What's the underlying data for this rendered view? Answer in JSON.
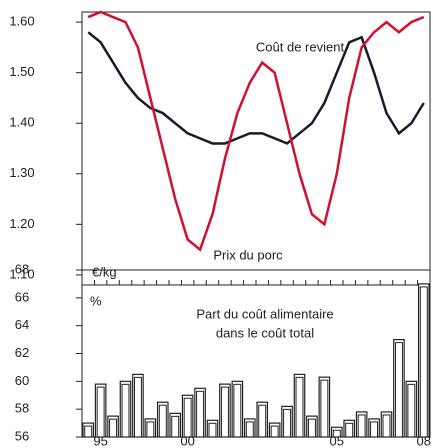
{
  "chart_data": [
    {
      "type": "line",
      "unit_label": "€/kg",
      "ylim": [
        1.08,
        1.62
      ],
      "yticks": [
        {
          "value": 1.1,
          "label": "1.10"
        },
        {
          "value": 1.2,
          "label": "1.20"
        },
        {
          "value": 1.3,
          "label": "1.30"
        },
        {
          "value": 1.4,
          "label": "1.40"
        },
        {
          "value": 1.5,
          "label": "1.50"
        },
        {
          "value": 1.6,
          "label": "1.60"
        }
      ],
      "series": [
        {
          "name": "Coût de revient",
          "color": "#1a1a2e",
          "values": [
            1.58,
            1.56,
            1.52,
            1.48,
            1.45,
            1.43,
            1.42,
            1.4,
            1.38,
            1.37,
            1.36,
            1.36,
            1.37,
            1.38,
            1.38,
            1.37,
            1.36,
            1.38,
            1.4,
            1.44,
            1.5,
            1.56,
            1.57,
            1.5,
            1.42,
            1.38,
            1.4,
            1.44
          ]
        },
        {
          "name": "Prix du porc",
          "color": "#d0102e",
          "values": [
            1.61,
            1.62,
            1.61,
            1.6,
            1.55,
            1.45,
            1.35,
            1.25,
            1.17,
            1.15,
            1.22,
            1.33,
            1.42,
            1.48,
            1.52,
            1.5,
            1.4,
            1.3,
            1.22,
            1.2,
            1.3,
            1.45,
            1.55,
            1.58,
            1.6,
            1.58,
            1.6,
            1.61
          ]
        }
      ]
    },
    {
      "type": "bar",
      "unit_label": "%",
      "annotation": [
        "Part du coût alimentaire",
        "dans le coût total"
      ],
      "categories": [
        null,
        "95",
        null,
        null,
        null,
        null,
        null,
        null,
        "00",
        null,
        null,
        null,
        null,
        null,
        null,
        null,
        null,
        null,
        null,
        null,
        "05",
        null,
        null,
        null,
        null,
        null,
        null,
        "08"
      ],
      "values": [
        57,
        59.8,
        57.5,
        60,
        60.5,
        57.3,
        58.5,
        57.7,
        59,
        59.5,
        57.2,
        59.8,
        60,
        57.3,
        58.5,
        57,
        58.2,
        60.5,
        57.5,
        60.3,
        56.7,
        57.2,
        57.8,
        57.3,
        57.8,
        63,
        60,
        67
      ],
      "color": "#ffffff",
      "ylim": [
        56,
        68
      ],
      "yticks": [
        56,
        58,
        60,
        62,
        64,
        66,
        68
      ]
    }
  ]
}
